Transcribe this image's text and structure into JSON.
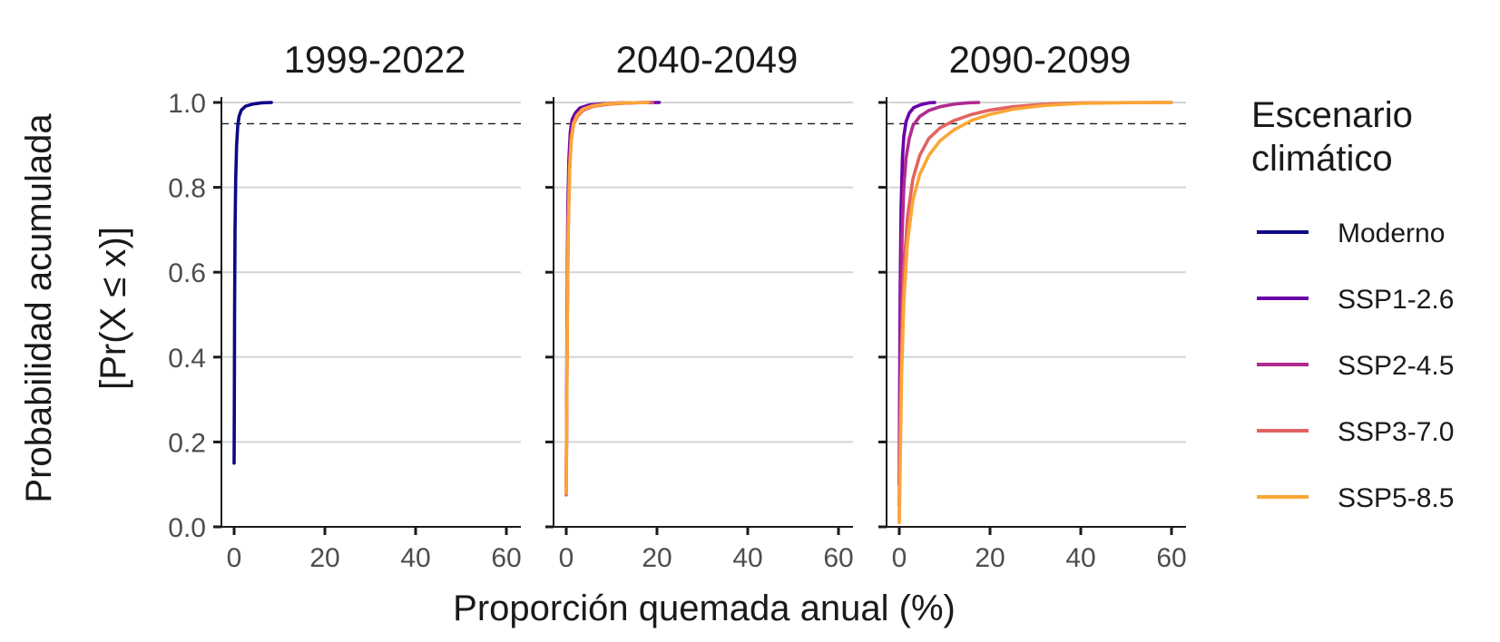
{
  "chart_data": {
    "type": "line",
    "subtype": "empirical cumulative distribution, faceted",
    "xlabel": "Proporción quemada anual (%)",
    "ylabel_lines": [
      "Probabilidad acumulada",
      "[Pr(X ≤ x)]"
    ],
    "xlim": [
      0,
      60
    ],
    "ylim": [
      0,
      1
    ],
    "x_ticks": [
      "0",
      "20",
      "40",
      "60"
    ],
    "y_ticks": [
      "0.0",
      "0.2",
      "0.4",
      "0.6",
      "0.8",
      "1.0"
    ],
    "reference_line": {
      "y": 0.95,
      "style": "dashed"
    },
    "grid": "horizontal",
    "legend": {
      "title_lines": [
        "Escenario",
        "climático"
      ],
      "position": "right",
      "entries": [
        {
          "name": "Moderno",
          "color": "#0d0887"
        },
        {
          "name": "SSP1-2.6",
          "color": "#6a00a8"
        },
        {
          "name": "SSP2-4.5",
          "color": "#b12a90"
        },
        {
          "name": "SSP3-7.0",
          "color": "#e16462"
        },
        {
          "name": "SSP5-8.5",
          "color": "#fca636"
        }
      ]
    },
    "panels": [
      {
        "title": "1999-2022",
        "series": [
          {
            "name": "Moderno",
            "color": "#0d0887",
            "points": [
              [
                0,
                0.15
              ],
              [
                0.05,
                0.3
              ],
              [
                0.1,
                0.5
              ],
              [
                0.2,
                0.7
              ],
              [
                0.35,
                0.82
              ],
              [
                0.55,
                0.9
              ],
              [
                0.8,
                0.945
              ],
              [
                1.1,
                0.968
              ],
              [
                1.6,
                0.982
              ],
              [
                2.5,
                0.991
              ],
              [
                4,
                0.996
              ],
              [
                6,
                0.999
              ],
              [
                8.2,
                1.0
              ]
            ]
          }
        ]
      },
      {
        "title": "2040-2049",
        "series": [
          {
            "name": "SSP1-2.6",
            "color": "#6a00a8",
            "points": [
              [
                0,
                0.09
              ],
              [
                0.1,
                0.3
              ],
              [
                0.2,
                0.55
              ],
              [
                0.35,
                0.75
              ],
              [
                0.6,
                0.87
              ],
              [
                0.9,
                0.93
              ],
              [
                1.3,
                0.96
              ],
              [
                2,
                0.975
              ],
              [
                3,
                0.987
              ],
              [
                5,
                0.994
              ],
              [
                8,
                0.997
              ],
              [
                12,
                0.999
              ],
              [
                20.5,
                1.0
              ]
            ]
          },
          {
            "name": "SSP2-4.5",
            "color": "#b12a90",
            "points": [
              [
                0,
                0.08
              ],
              [
                0.1,
                0.28
              ],
              [
                0.25,
                0.52
              ],
              [
                0.4,
                0.72
              ],
              [
                0.7,
                0.85
              ],
              [
                1.0,
                0.915
              ],
              [
                1.5,
                0.95
              ],
              [
                2.3,
                0.97
              ],
              [
                3.5,
                0.983
              ],
              [
                5.5,
                0.992
              ],
              [
                9,
                0.997
              ],
              [
                14,
                0.999
              ],
              [
                18,
                1.0
              ]
            ]
          },
          {
            "name": "SSP3-7.0",
            "color": "#e16462",
            "points": [
              [
                0,
                0.075
              ],
              [
                0.1,
                0.25
              ],
              [
                0.25,
                0.5
              ],
              [
                0.45,
                0.7
              ],
              [
                0.75,
                0.84
              ],
              [
                1.1,
                0.91
              ],
              [
                1.6,
                0.948
              ],
              [
                2.5,
                0.968
              ],
              [
                3.8,
                0.982
              ],
              [
                6,
                0.991
              ],
              [
                9.5,
                0.996
              ],
              [
                14,
                0.999
              ],
              [
                19,
                1.0
              ]
            ]
          },
          {
            "name": "SSP5-8.5",
            "color": "#fca636",
            "points": [
              [
                0,
                0.08
              ],
              [
                0.1,
                0.27
              ],
              [
                0.25,
                0.51
              ],
              [
                0.45,
                0.71
              ],
              [
                0.75,
                0.845
              ],
              [
                1.1,
                0.912
              ],
              [
                1.6,
                0.95
              ],
              [
                2.4,
                0.97
              ],
              [
                3.6,
                0.984
              ],
              [
                5.8,
                0.992
              ],
              [
                9,
                0.997
              ],
              [
                13,
                0.999
              ],
              [
                18,
                1.0
              ]
            ]
          }
        ]
      },
      {
        "title": "2090-2099",
        "series": [
          {
            "name": "SSP1-2.6",
            "color": "#6a00a8",
            "points": [
              [
                0,
                0.1
              ],
              [
                0.1,
                0.35
              ],
              [
                0.2,
                0.55
              ],
              [
                0.4,
                0.75
              ],
              [
                0.7,
                0.87
              ],
              [
                1.0,
                0.92
              ],
              [
                1.5,
                0.955
              ],
              [
                2.2,
                0.975
              ],
              [
                3.2,
                0.988
              ],
              [
                4.8,
                0.995
              ],
              [
                6.5,
                0.999
              ],
              [
                7.8,
                1.0
              ]
            ]
          },
          {
            "name": "SSP2-4.5",
            "color": "#b12a90",
            "points": [
              [
                0,
                0.05
              ],
              [
                0.15,
                0.25
              ],
              [
                0.35,
                0.5
              ],
              [
                0.6,
                0.68
              ],
              [
                1.0,
                0.8
              ],
              [
                1.5,
                0.87
              ],
              [
                2.2,
                0.915
              ],
              [
                3,
                0.945
              ],
              [
                4.5,
                0.967
              ],
              [
                6.5,
                0.981
              ],
              [
                9,
                0.99
              ],
              [
                12,
                0.996
              ],
              [
                15,
                0.999
              ],
              [
                17.5,
                1.0
              ]
            ]
          },
          {
            "name": "SSP3-7.0",
            "color": "#e16462",
            "points": [
              [
                0,
                0.02
              ],
              [
                0.2,
                0.2
              ],
              [
                0.5,
                0.42
              ],
              [
                1,
                0.6
              ],
              [
                1.8,
                0.73
              ],
              [
                3,
                0.82
              ],
              [
                4.5,
                0.875
              ],
              [
                6.5,
                0.915
              ],
              [
                9,
                0.94
              ],
              [
                12,
                0.957
              ],
              [
                16,
                0.972
              ],
              [
                20,
                0.982
              ],
              [
                25,
                0.99
              ],
              [
                32,
                0.996
              ],
              [
                40,
                0.999
              ],
              [
                60,
                1.0
              ]
            ]
          },
          {
            "name": "SSP5-8.5",
            "color": "#fca636",
            "points": [
              [
                0,
                0.01
              ],
              [
                0.2,
                0.15
              ],
              [
                0.5,
                0.35
              ],
              [
                1,
                0.53
              ],
              [
                1.8,
                0.67
              ],
              [
                3,
                0.77
              ],
              [
                4.5,
                0.83
              ],
              [
                6.5,
                0.875
              ],
              [
                9,
                0.91
              ],
              [
                12,
                0.935
              ],
              [
                16,
                0.958
              ],
              [
                20,
                0.972
              ],
              [
                25,
                0.984
              ],
              [
                32,
                0.993
              ],
              [
                40,
                0.998
              ],
              [
                50,
                0.9995
              ],
              [
                60,
                1.0
              ]
            ]
          }
        ]
      }
    ]
  }
}
